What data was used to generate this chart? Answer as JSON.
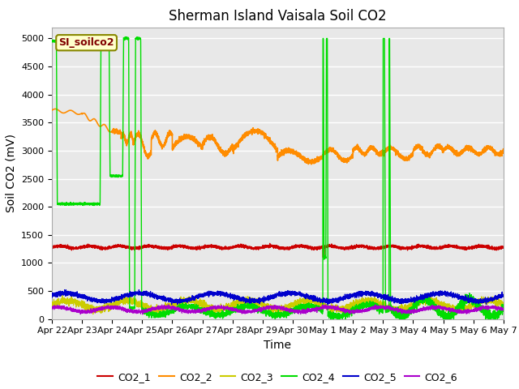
{
  "title": "Sherman Island Vaisala Soil CO2",
  "ylabel": "Soil CO2 (mV)",
  "xlabel": "Time",
  "legend_label": "SI_soilco2",
  "series_labels": [
    "CO2_1",
    "CO2_2",
    "CO2_3",
    "CO2_4",
    "CO2_5",
    "CO2_6"
  ],
  "series_colors": [
    "#cc0000",
    "#ff8c00",
    "#cccc00",
    "#00dd00",
    "#0000cc",
    "#aa00cc"
  ],
  "bg_color": "#e8e8e8",
  "ylim": [
    0,
    5200
  ],
  "title_fontsize": 12,
  "axis_label_fontsize": 10,
  "tick_fontsize": 8,
  "legend_fontsize": 9,
  "xtick_labels": [
    "Apr 22",
    "Apr 23",
    "Apr 24",
    "Apr 25",
    "Apr 26",
    "Apr 27",
    "Apr 28",
    "Apr 29",
    "Apr 30",
    "May 1",
    "May 2",
    "May 3",
    "May 4",
    "May 5",
    "May 6",
    "May 7"
  ]
}
